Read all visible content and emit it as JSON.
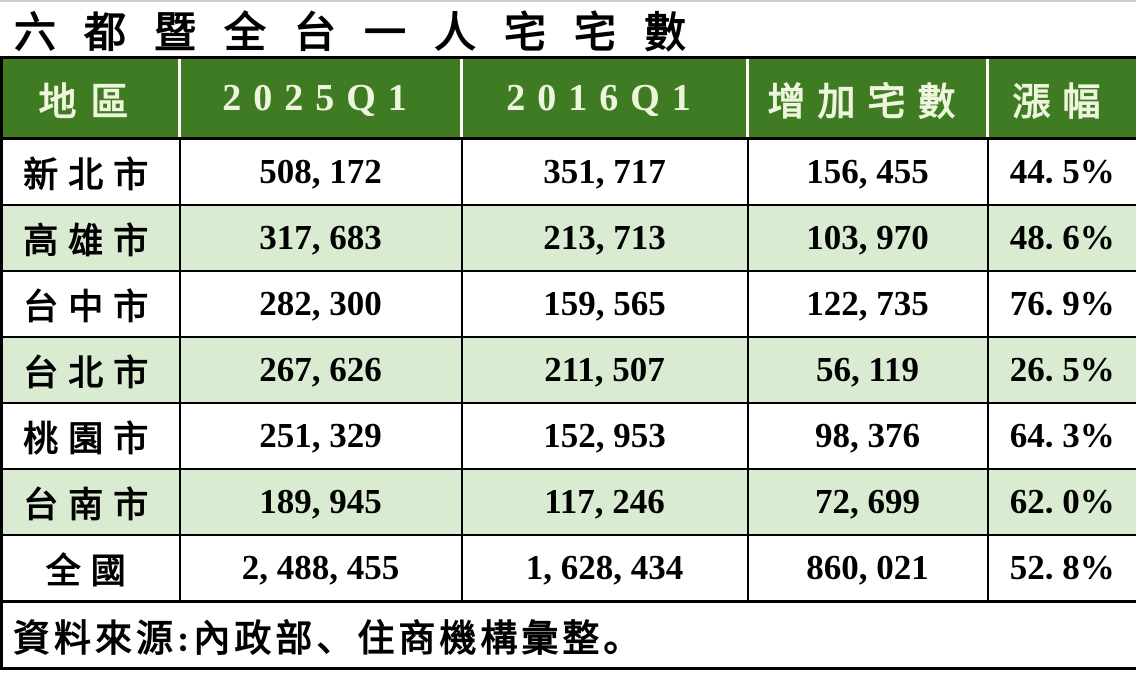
{
  "title": "六都暨全台一人宅宅數",
  "colors": {
    "header_bg": "#3e7b22",
    "header_text": "#eef5dd",
    "alt_row_bg": "#d9ecd2",
    "border": "#000000",
    "text": "#000000"
  },
  "table": {
    "columns": [
      "地區",
      "2025Q1",
      "2016Q1",
      "增加宅數",
      "漲幅"
    ],
    "rows": [
      [
        "新北市",
        "508, 172",
        "351, 717",
        "156, 455",
        "44. 5%"
      ],
      [
        "高雄市",
        "317, 683",
        "213, 713",
        "103, 970",
        "48. 6%"
      ],
      [
        "台中市",
        "282, 300",
        "159, 565",
        "122, 735",
        "76. 9%"
      ],
      [
        "台北市",
        "267, 626",
        "211, 507",
        "56, 119",
        "26. 5%"
      ],
      [
        "桃園市",
        "251, 329",
        "152, 953",
        "98, 376",
        "64. 3%"
      ],
      [
        "台南市",
        "189, 945",
        "117, 246",
        "72, 699",
        "62. 0%"
      ],
      [
        "全國",
        "2, 488, 455",
        "1, 628, 434",
        "860, 021",
        "52. 8%"
      ]
    ]
  },
  "footer": {
    "source": "資料來源:內政部、住商機構彙整。"
  },
  "chart_data": {
    "type": "table",
    "title": "六都暨全台一人宅宅數",
    "columns": [
      "地區",
      "2025Q1",
      "2016Q1",
      "增加宅數",
      "漲幅"
    ],
    "categories": [
      "新北市",
      "高雄市",
      "台中市",
      "台北市",
      "桃園市",
      "台南市",
      "全國"
    ],
    "series": [
      {
        "name": "2025Q1",
        "values": [
          508172,
          317683,
          282300,
          267626,
          251329,
          189945,
          2488455
        ]
      },
      {
        "name": "2016Q1",
        "values": [
          351717,
          213713,
          159565,
          211507,
          152953,
          117246,
          1628434
        ]
      },
      {
        "name": "增加宅數",
        "values": [
          156455,
          103970,
          122735,
          56119,
          98376,
          72699,
          860021
        ]
      },
      {
        "name": "漲幅(%)",
        "values": [
          44.5,
          48.6,
          76.9,
          26.5,
          64.3,
          62.0,
          52.8
        ]
      }
    ],
    "source": "資料來源:內政部、住商機構彙整。"
  }
}
